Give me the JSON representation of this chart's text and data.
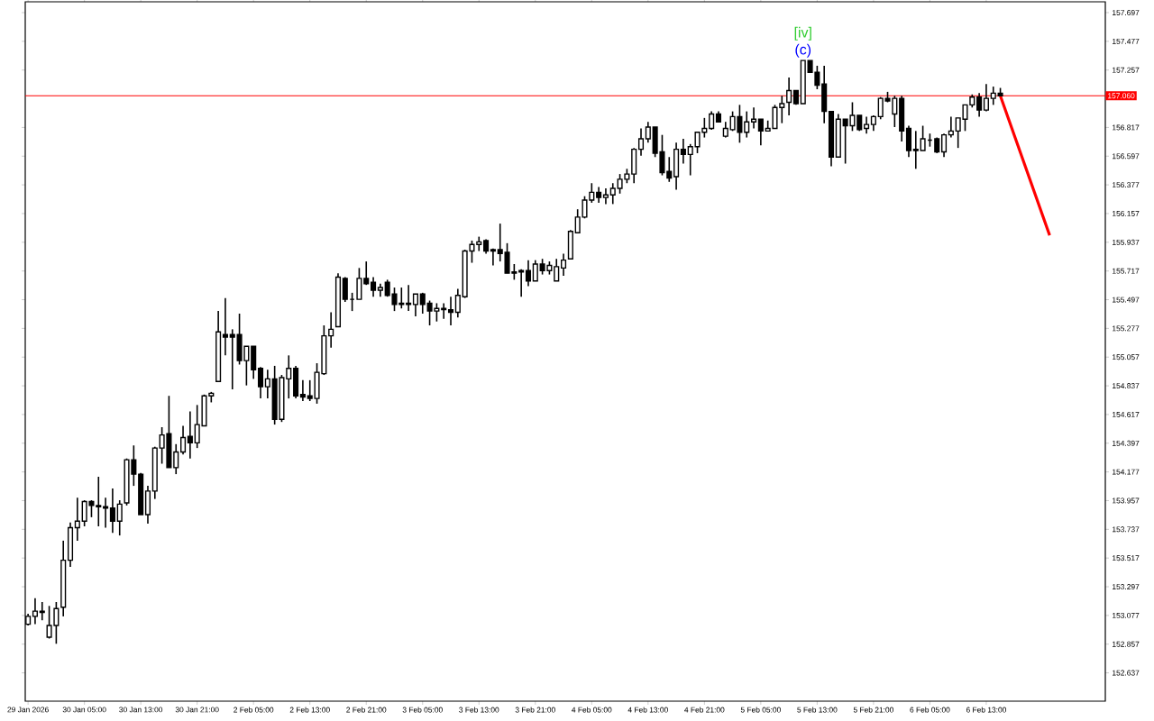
{
  "chart_data": {
    "type": "candlestick",
    "categories": [
      "29 Jan 2026",
      null,
      null,
      null,
      null,
      null,
      null,
      null,
      "30 Jan 05:00",
      null,
      null,
      null,
      null,
      null,
      null,
      null,
      "30 Jan 13:00",
      null,
      null,
      null,
      null,
      null,
      null,
      null,
      "30 Jan 21:00",
      null,
      null,
      null,
      null,
      null,
      null,
      null,
      "2 Feb 05:00",
      null,
      null,
      null,
      null,
      null,
      null,
      null,
      "2 Feb 13:00",
      null,
      null,
      null,
      null,
      null,
      null,
      null,
      "2 Feb 21:00",
      null,
      null,
      null,
      null,
      null,
      null,
      null,
      "3 Feb 05:00",
      null,
      null,
      null,
      null,
      null,
      null,
      null,
      "3 Feb 13:00",
      null,
      null,
      null,
      null,
      null,
      null,
      null,
      "3 Feb 21:00",
      null,
      null,
      null,
      null,
      null,
      null,
      null,
      "4 Feb 05:00",
      null,
      null,
      null,
      null,
      null,
      null,
      null,
      "4 Feb 13:00",
      null,
      null,
      null,
      null,
      null,
      null,
      null,
      "4 Feb 21:00",
      null,
      null,
      null,
      null,
      null,
      null,
      null,
      "5 Feb 05:00",
      null,
      null,
      null,
      null,
      null,
      null,
      null,
      "5 Feb 13:00",
      null,
      null,
      null,
      null,
      null,
      null,
      null,
      "5 Feb 21:00",
      null,
      null,
      null,
      null,
      null,
      null,
      null,
      "6 Feb 05:00",
      null,
      null,
      null,
      null,
      null,
      null,
      null,
      "6 Feb 13:00",
      null,
      null,
      null,
      null,
      null,
      null,
      null,
      null,
      null,
      null,
      null,
      null,
      null,
      null,
      null,
      null
    ],
    "ohlc": [
      [
        153.01,
        153.09,
        153.0,
        153.07
      ],
      [
        153.07,
        153.21,
        153.01,
        153.11
      ],
      [
        153.11,
        153.18,
        153.04,
        153.1
      ],
      [
        152.91,
        153.15,
        152.9,
        153.0
      ],
      [
        153.0,
        153.18,
        152.86,
        153.13
      ],
      [
        153.14,
        153.65,
        153.07,
        153.5
      ],
      [
        153.5,
        153.79,
        153.45,
        153.75
      ],
      [
        153.75,
        153.98,
        153.65,
        153.8
      ],
      [
        153.8,
        153.96,
        153.76,
        153.95
      ],
      [
        153.95,
        153.96,
        153.83,
        153.92
      ],
      [
        153.92,
        154.14,
        153.76,
        153.91
      ],
      [
        153.91,
        153.98,
        153.75,
        153.9
      ],
      [
        153.9,
        154.05,
        153.71,
        153.8
      ],
      [
        153.8,
        153.96,
        153.69,
        153.93
      ],
      [
        153.94,
        154.28,
        153.92,
        154.27
      ],
      [
        154.27,
        154.38,
        154.07,
        154.16
      ],
      [
        154.16,
        154.17,
        153.85,
        153.85
      ],
      [
        153.85,
        154.07,
        153.78,
        154.03
      ],
      [
        154.03,
        154.37,
        153.97,
        154.36
      ],
      [
        154.36,
        154.52,
        154.24,
        154.46
      ],
      [
        154.47,
        154.76,
        154.21,
        154.21
      ],
      [
        154.21,
        154.39,
        154.16,
        154.33
      ],
      [
        154.33,
        154.53,
        154.31,
        154.44
      ],
      [
        154.45,
        154.64,
        154.28,
        154.4
      ],
      [
        154.4,
        154.69,
        154.36,
        154.54
      ],
      [
        154.53,
        154.77,
        154.53,
        154.76
      ],
      [
        154.76,
        154.79,
        154.71,
        154.78
      ],
      [
        154.87,
        155.41,
        154.87,
        155.25
      ],
      [
        155.23,
        155.51,
        155.07,
        155.21
      ],
      [
        155.23,
        155.27,
        154.81,
        155.21
      ],
      [
        155.23,
        155.39,
        155.0,
        155.03
      ],
      [
        155.03,
        155.14,
        154.84,
        155.14
      ],
      [
        155.14,
        155.14,
        154.89,
        154.96
      ],
      [
        154.97,
        154.98,
        154.74,
        154.83
      ],
      [
        154.83,
        154.96,
        154.74,
        154.89
      ],
      [
        154.89,
        154.99,
        154.54,
        154.58
      ],
      [
        154.58,
        154.92,
        154.56,
        154.9
      ],
      [
        154.89,
        155.07,
        154.74,
        154.97
      ],
      [
        154.97,
        154.99,
        154.74,
        154.76
      ],
      [
        154.77,
        154.88,
        154.72,
        154.75
      ],
      [
        154.76,
        154.88,
        154.72,
        154.74
      ],
      [
        154.74,
        155.01,
        154.7,
        154.94
      ],
      [
        154.93,
        155.3,
        154.92,
        155.22
      ],
      [
        155.22,
        155.4,
        155.13,
        155.27
      ],
      [
        155.29,
        155.7,
        155.29,
        155.67
      ],
      [
        155.66,
        155.67,
        155.48,
        155.5
      ],
      [
        155.5,
        155.55,
        155.41,
        155.5
      ],
      [
        155.5,
        155.74,
        155.5,
        155.66
      ],
      [
        155.66,
        155.79,
        155.61,
        155.62
      ],
      [
        155.63,
        155.67,
        155.52,
        155.57
      ],
      [
        155.57,
        155.62,
        155.52,
        155.59
      ],
      [
        155.63,
        155.65,
        155.52,
        155.53
      ],
      [
        155.54,
        155.59,
        155.41,
        155.46
      ],
      [
        155.47,
        155.59,
        155.43,
        155.46
      ],
      [
        155.47,
        155.61,
        155.41,
        155.46
      ],
      [
        155.46,
        155.54,
        155.37,
        155.54
      ],
      [
        155.54,
        155.55,
        155.39,
        155.46
      ],
      [
        155.47,
        155.49,
        155.3,
        155.41
      ],
      [
        155.41,
        155.47,
        155.33,
        155.43
      ],
      [
        155.43,
        155.47,
        155.35,
        155.42
      ],
      [
        155.42,
        155.52,
        155.3,
        155.4
      ],
      [
        155.4,
        155.58,
        155.36,
        155.53
      ],
      [
        155.52,
        155.88,
        155.51,
        155.87
      ],
      [
        155.87,
        155.95,
        155.78,
        155.92
      ],
      [
        155.92,
        155.98,
        155.87,
        155.94
      ],
      [
        155.95,
        155.96,
        155.85,
        155.87
      ],
      [
        155.88,
        155.89,
        155.76,
        155.87
      ],
      [
        155.88,
        156.08,
        155.79,
        155.85
      ],
      [
        155.86,
        155.93,
        155.7,
        155.7
      ],
      [
        155.71,
        155.77,
        155.65,
        155.7
      ],
      [
        155.72,
        155.73,
        155.52,
        155.71
      ],
      [
        155.72,
        155.8,
        155.6,
        155.64
      ],
      [
        155.64,
        155.8,
        155.64,
        155.77
      ],
      [
        155.77,
        155.81,
        155.69,
        155.72
      ],
      [
        155.72,
        155.79,
        155.69,
        155.76
      ],
      [
        155.64,
        155.81,
        155.64,
        155.75
      ],
      [
        155.74,
        155.85,
        155.68,
        155.8
      ],
      [
        155.81,
        156.03,
        155.81,
        156.02
      ],
      [
        156.01,
        156.19,
        156.01,
        156.13
      ],
      [
        156.13,
        156.29,
        156.12,
        156.26
      ],
      [
        156.26,
        156.39,
        156.24,
        156.32
      ],
      [
        156.32,
        156.36,
        156.24,
        156.28
      ],
      [
        156.28,
        156.35,
        156.23,
        156.3
      ],
      [
        156.3,
        156.39,
        156.23,
        156.35
      ],
      [
        156.35,
        156.46,
        156.31,
        156.42
      ],
      [
        156.42,
        156.5,
        156.39,
        156.46
      ],
      [
        156.46,
        156.66,
        156.39,
        156.65
      ],
      [
        156.65,
        156.81,
        156.6,
        156.73
      ],
      [
        156.73,
        156.86,
        156.7,
        156.82
      ],
      [
        156.82,
        156.82,
        156.59,
        156.62
      ],
      [
        156.63,
        156.76,
        156.45,
        156.47
      ],
      [
        156.48,
        156.59,
        156.4,
        156.43
      ],
      [
        156.44,
        156.7,
        156.34,
        156.65
      ],
      [
        156.65,
        156.73,
        156.54,
        156.61
      ],
      [
        156.61,
        156.69,
        156.45,
        156.67
      ],
      [
        156.67,
        156.78,
        156.62,
        156.78
      ],
      [
        156.78,
        156.89,
        156.74,
        156.81
      ],
      [
        156.81,
        156.94,
        156.8,
        156.92
      ],
      [
        156.92,
        156.94,
        156.86,
        156.86
      ],
      [
        156.75,
        156.86,
        156.74,
        156.81
      ],
      [
        156.8,
        156.94,
        156.79,
        156.9
      ],
      [
        156.9,
        156.99,
        156.7,
        156.78
      ],
      [
        156.78,
        156.94,
        156.74,
        156.86
      ],
      [
        156.86,
        156.97,
        156.81,
        156.88
      ],
      [
        156.88,
        156.88,
        156.68,
        156.79
      ],
      [
        156.79,
        156.87,
        156.79,
        156.81
      ],
      [
        156.81,
        156.99,
        156.81,
        156.97
      ],
      [
        156.97,
        157.06,
        156.85,
        157.0
      ],
      [
        157.01,
        157.2,
        156.91,
        157.1
      ],
      [
        157.1,
        157.1,
        156.99,
        157.0
      ],
      [
        157.0,
        157.33,
        157.0,
        157.33
      ],
      [
        157.33,
        157.33,
        157.24,
        157.24
      ],
      [
        157.24,
        157.29,
        157.11,
        157.14
      ],
      [
        157.15,
        157.29,
        156.85,
        156.94
      ],
      [
        156.94,
        156.94,
        156.52,
        156.59
      ],
      [
        156.59,
        156.92,
        156.59,
        156.88
      ],
      [
        156.88,
        156.88,
        156.54,
        156.83
      ],
      [
        156.83,
        157.01,
        156.79,
        156.91
      ],
      [
        156.91,
        156.91,
        156.79,
        156.8
      ],
      [
        156.81,
        156.9,
        156.77,
        156.84
      ],
      [
        156.84,
        156.91,
        156.79,
        156.9
      ],
      [
        156.9,
        157.05,
        156.88,
        157.04
      ],
      [
        157.04,
        157.09,
        157.01,
        157.02
      ],
      [
        156.92,
        157.06,
        156.82,
        157.04
      ],
      [
        157.04,
        157.06,
        156.71,
        156.79
      ],
      [
        156.81,
        156.83,
        156.59,
        156.64
      ],
      [
        156.65,
        156.79,
        156.5,
        156.64
      ],
      [
        156.64,
        156.83,
        156.64,
        156.73
      ],
      [
        156.72,
        156.77,
        156.67,
        156.72
      ],
      [
        156.73,
        156.74,
        156.62,
        156.63
      ],
      [
        156.63,
        156.77,
        156.59,
        156.76
      ],
      [
        156.76,
        156.9,
        156.74,
        156.79
      ],
      [
        156.79,
        156.89,
        156.66,
        156.89
      ],
      [
        156.88,
        156.99,
        156.79,
        156.99
      ],
      [
        156.99,
        157.07,
        156.97,
        157.05
      ],
      [
        157.05,
        157.08,
        156.9,
        156.95
      ],
      [
        156.95,
        157.15,
        156.94,
        157.04
      ],
      [
        157.04,
        157.13,
        156.99,
        157.08
      ],
      [
        157.08,
        157.12,
        157.06,
        157.06
      ],
      null,
      null,
      null,
      null,
      null,
      null,
      null,
      null,
      null,
      null,
      null,
      null,
      null,
      null
    ],
    "series": [
      {
        "type": "line",
        "color": "#ff0000",
        "values": [
          null,
          null,
          null,
          null,
          null,
          null,
          null,
          null,
          null,
          null,
          null,
          null,
          null,
          null,
          null,
          null,
          null,
          null,
          null,
          null,
          null,
          null,
          null,
          null,
          null,
          null,
          null,
          null,
          null,
          null,
          null,
          null,
          null,
          null,
          null,
          null,
          null,
          null,
          null,
          null,
          null,
          null,
          null,
          null,
          null,
          null,
          null,
          null,
          null,
          null,
          null,
          null,
          null,
          null,
          null,
          null,
          null,
          null,
          null,
          null,
          null,
          null,
          null,
          null,
          null,
          null,
          null,
          null,
          null,
          null,
          null,
          null,
          null,
          null,
          null,
          null,
          null,
          null,
          null,
          null,
          null,
          null,
          null,
          null,
          null,
          null,
          null,
          null,
          null,
          null,
          null,
          null,
          null,
          null,
          null,
          null,
          null,
          null,
          null,
          null,
          null,
          null,
          null,
          null,
          null,
          null,
          null,
          null,
          null,
          null,
          null,
          null,
          null,
          null,
          null,
          null,
          null,
          null,
          null,
          null,
          null,
          null,
          null,
          null,
          null,
          null,
          null,
          null,
          null,
          null,
          null,
          null,
          null,
          null,
          null,
          null,
          null,
          null,
          157.06,
          null,
          null,
          null,
          null,
          null,
          null,
          155.99,
          null,
          null,
          null,
          null,
          null,
          null,
          null
        ]
      }
    ],
    "ref_lines": [
      {
        "axis": "y",
        "value": 157.06,
        "label": "157.060",
        "color": "#ff0000"
      }
    ],
    "annotations": [
      "[iv]",
      "(c)"
    ],
    "ylim": [
      152.42,
      157.78
    ],
    "yticks": [
      152.637,
      152.857,
      153.077,
      153.297,
      153.517,
      153.737,
      153.957,
      154.177,
      154.397,
      154.617,
      154.837,
      155.057,
      155.277,
      155.497,
      155.717,
      155.937,
      156.157,
      156.377,
      156.597,
      156.817,
      157.257,
      157.477,
      157.697
    ]
  }
}
